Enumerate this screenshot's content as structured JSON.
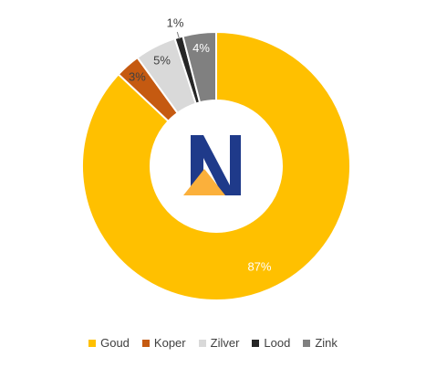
{
  "chart_data": {
    "type": "pie",
    "style": "donut",
    "categories": [
      "Goud",
      "Koper",
      "Zilver",
      "Lood",
      "Zink"
    ],
    "values": [
      87,
      3,
      5,
      1,
      4
    ],
    "labels": [
      "87%",
      "3%",
      "5%",
      "1%",
      "4%"
    ],
    "colors": [
      "#FFC000",
      "#C55A11",
      "#D9D9D9",
      "#262626",
      "#808080"
    ],
    "legend_position": "bottom"
  },
  "logo": {
    "icon": "n-letter-logo-icon",
    "colors": [
      "#1F3A8A",
      "#FBB03B"
    ]
  },
  "legend": {
    "items": [
      {
        "label": "Goud",
        "color": "#FFC000"
      },
      {
        "label": "Koper",
        "color": "#C55A11"
      },
      {
        "label": "Zilver",
        "color": "#D9D9D9"
      },
      {
        "label": "Lood",
        "color": "#262626"
      },
      {
        "label": "Zink",
        "color": "#808080"
      }
    ]
  }
}
